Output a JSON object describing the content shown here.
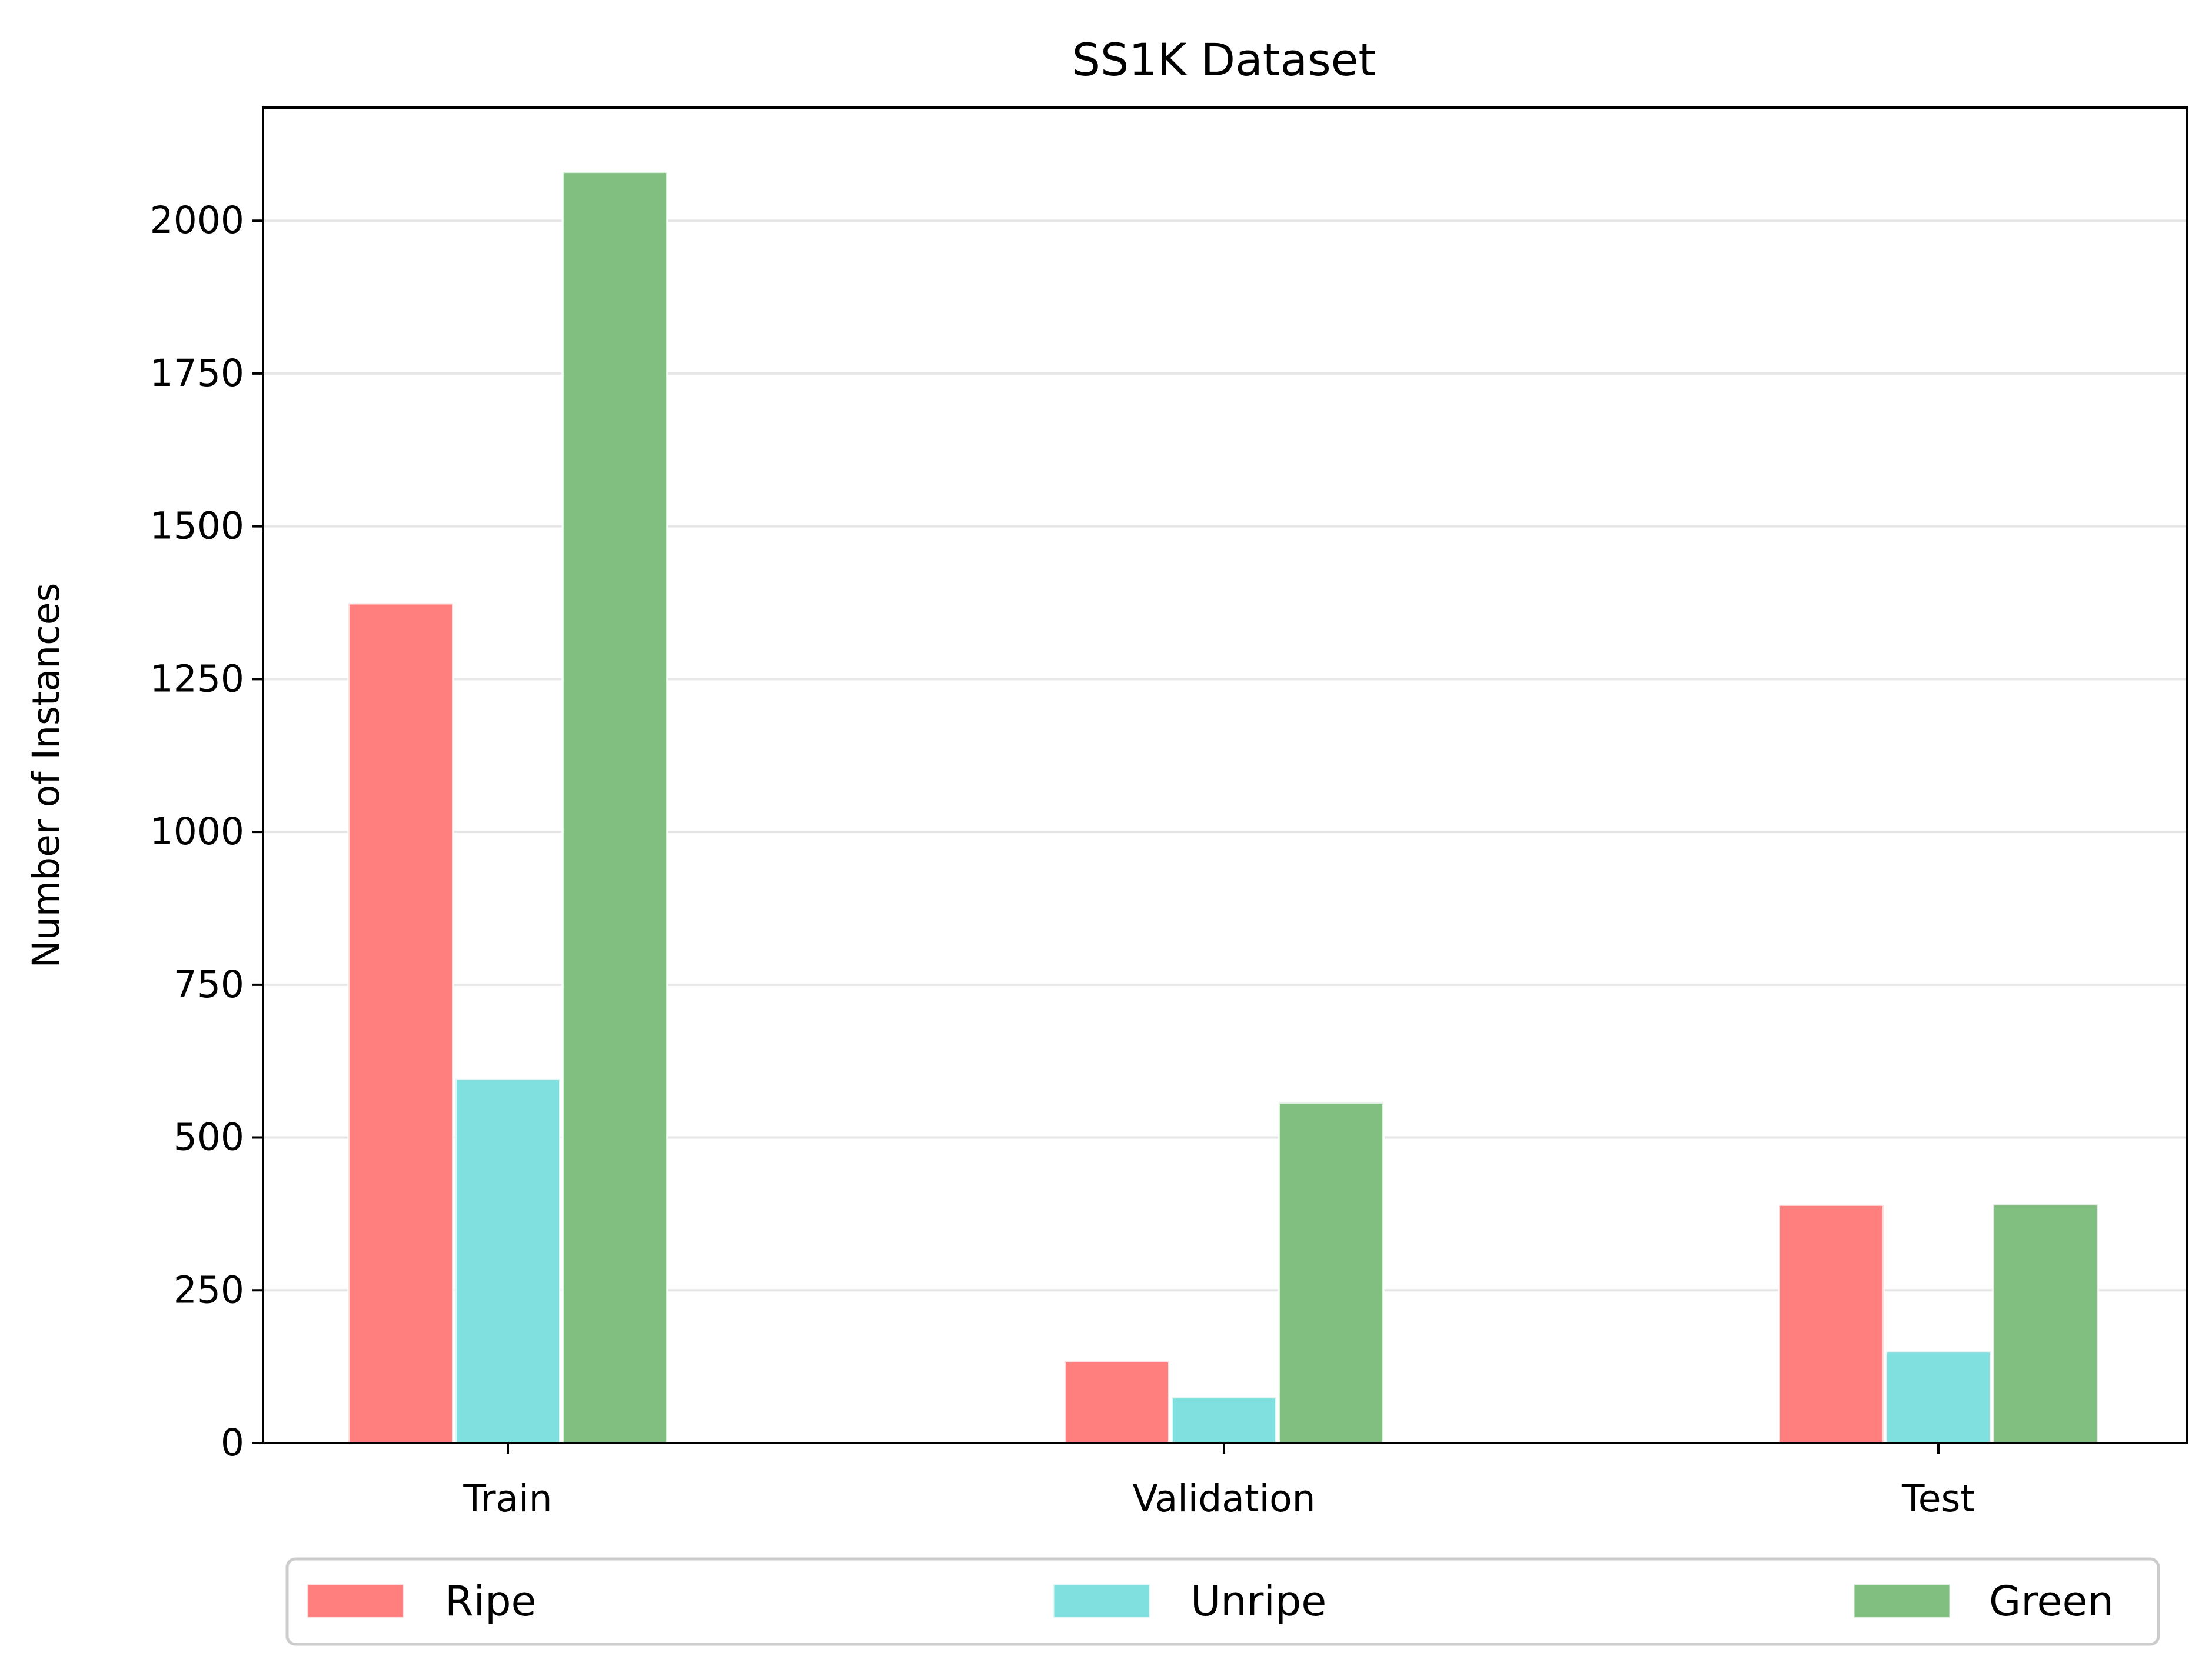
{
  "chart_data": {
    "type": "bar",
    "title": "SS1K Dataset",
    "xlabel": "",
    "ylabel": "Number of Instances",
    "categories": [
      "Train",
      "Validation",
      "Test"
    ],
    "series": [
      {
        "name": "Ripe",
        "values": [
          1374,
          134,
          390
        ],
        "color": "#ff7f7f"
      },
      {
        "name": "Unripe",
        "values": [
          596,
          75,
          150
        ],
        "color": "#80dfdf"
      },
      {
        "name": "Green",
        "values": [
          2080,
          557,
          391
        ],
        "color": "#80bf80"
      }
    ],
    "ylim": [
      0,
      2185
    ],
    "yticks": [
      0,
      250,
      500,
      750,
      1000,
      1250,
      1500,
      1750,
      2000
    ],
    "grid": "y",
    "legend_position": "bottom"
  }
}
